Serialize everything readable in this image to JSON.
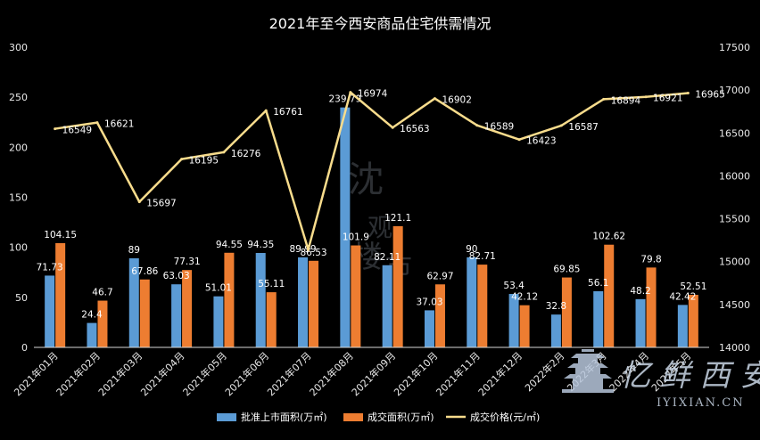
{
  "chart_data": {
    "type": "bar",
    "title": "2021年至今西安商品住宅供需情况",
    "categories": [
      "2021年01月",
      "2021年02月",
      "2021年03月",
      "2021年04月",
      "2021年05月",
      "2021年06月",
      "2021年07月",
      "2021年08月",
      "2021年09月",
      "2021年10月",
      "2021年11月",
      "2021年12月",
      "2022年2月",
      "2022年3月",
      "2022年4月",
      "2022年5月"
    ],
    "series": [
      {
        "name": "批准上市面积(万㎡)",
        "type": "bar",
        "axis": "left",
        "color": "#5b9bd5",
        "values": [
          71.73,
          24.4,
          89,
          63.03,
          51.01,
          94.35,
          89.99,
          239.79,
          82.11,
          37.03,
          90,
          53.4,
          32.8,
          56.1,
          48.2,
          42.42
        ]
      },
      {
        "name": "成交面积(万㎡)",
        "type": "bar",
        "axis": "left",
        "color": "#ed7d31",
        "values": [
          104.15,
          46.7,
          67.86,
          77.31,
          94.55,
          55.11,
          86.53,
          101.9,
          121.1,
          62.97,
          82.71,
          42.12,
          69.85,
          102.62,
          79.8,
          52.51
        ]
      },
      {
        "name": "成交价格(元/㎡)",
        "type": "line",
        "axis": "right",
        "color": "#f8dc8c",
        "values": [
          16549,
          16621,
          15697,
          16195,
          16276,
          16761,
          15140,
          16974,
          16563,
          16902,
          16589,
          16423,
          16587,
          16894,
          16921,
          16965
        ]
      }
    ],
    "point_labels": [
      "16549",
      "16621",
      "15697",
      "16195",
      "16276",
      "16761",
      "",
      "16974",
      "16563",
      "16902",
      "16589",
      "16423",
      "16587",
      "16894",
      "16921",
      "16965"
    ],
    "y_left": {
      "min": 0,
      "max": 300,
      "ticks": [
        "0",
        "50",
        "100",
        "150",
        "200",
        "250",
        "300"
      ]
    },
    "y_right": {
      "min": 14000,
      "max": 17500,
      "ticks": [
        "14000",
        "14500",
        "15000",
        "15500",
        "16000",
        "16500",
        "17000",
        "17500"
      ]
    },
    "grid": false,
    "legend_position": "bottom"
  },
  "watermark": {
    "text": "iyixian西安",
    "url": "IYIXIAN.CN",
    "center_text": "沈 观 楼 市"
  },
  "colors": {
    "background": "#000000",
    "text": "#ffffff"
  }
}
